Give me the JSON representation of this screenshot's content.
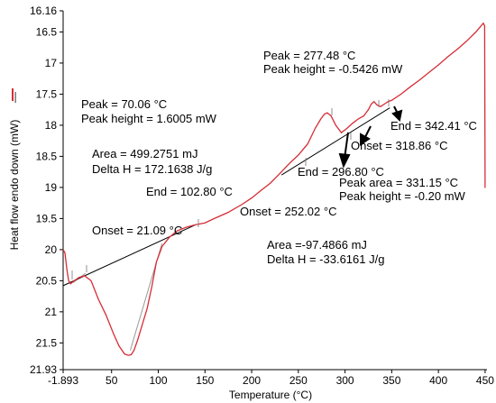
{
  "chart_data": {
    "type": "line",
    "xlabel": "Temperature (°C)",
    "ylabel": "Heat flow endo down (mW)",
    "xlim": [
      -1.893,
      452
    ],
    "ylim": [
      16.16,
      21.93
    ],
    "y_inverted": true,
    "x_ticks": [
      "-1.893",
      "50",
      "100",
      "150",
      "200",
      "250",
      "300",
      "350",
      "400",
      "450"
    ],
    "x_tick_values": [
      -1.893,
      50,
      100,
      150,
      200,
      250,
      300,
      350,
      400,
      450
    ],
    "y_ticks": [
      "16.16",
      "16.5",
      "17",
      "17.5",
      "18",
      "18.5",
      "19",
      "19.5",
      "20",
      "20.5",
      "21",
      "21.5",
      "21.93"
    ],
    "y_tick_values": [
      16.16,
      16.5,
      17,
      17.5,
      18,
      18.5,
      19,
      19.5,
      20,
      20.5,
      21,
      21.5,
      21.93
    ],
    "legend_label": "—",
    "colors": {
      "curve": "#d62d36",
      "baseline": "#000000",
      "tangent": "#999999"
    },
    "series": [
      {
        "x": [
          -1.893,
          0,
          2,
          4,
          6,
          10,
          15,
          21,
          28,
          36,
          44,
          52,
          58,
          64,
          68,
          71,
          74,
          78,
          83,
          88,
          93,
          98,
          104,
          112,
          120,
          130,
          140,
          150,
          160,
          175,
          190,
          200,
          210,
          220,
          230,
          240,
          250,
          260,
          268,
          274,
          278,
          281,
          285,
          290,
          296,
          302,
          308,
          314,
          320,
          325,
          328,
          331,
          334,
          338,
          342,
          346,
          350,
          360,
          370,
          380,
          390,
          400,
          410,
          420,
          430,
          440,
          448,
          449.5,
          450,
          450.5
        ],
        "y": [
          20.0,
          20.05,
          20.3,
          20.5,
          20.55,
          20.5,
          20.45,
          20.42,
          20.5,
          20.8,
          21.05,
          21.35,
          21.55,
          21.68,
          21.7,
          21.69,
          21.62,
          21.45,
          21.2,
          20.95,
          20.6,
          20.2,
          19.95,
          19.8,
          19.7,
          19.64,
          19.6,
          19.57,
          19.5,
          19.4,
          19.27,
          19.17,
          19.05,
          18.93,
          18.78,
          18.62,
          18.48,
          18.3,
          18.05,
          17.9,
          17.82,
          17.8,
          17.85,
          18.0,
          18.12,
          18.05,
          17.97,
          17.9,
          17.85,
          17.75,
          17.66,
          17.62,
          17.67,
          17.7,
          17.66,
          17.62,
          17.6,
          17.5,
          17.38,
          17.27,
          17.15,
          17.03,
          16.9,
          16.78,
          16.65,
          16.5,
          16.36,
          16.4,
          19.0,
          19.0
        ]
      }
    ],
    "baselines": [
      {
        "from": [
          -1.893,
          20.58
        ],
        "to": [
          140,
          19.6
        ]
      },
      {
        "from": [
          232,
          18.8
        ],
        "to": [
          348,
          17.72
        ]
      }
    ],
    "tangents": [
      {
        "from": [
          9,
          20.53
        ],
        "to": [
          22,
          20.38
        ]
      },
      {
        "from": [
          70,
          21.62
        ],
        "to": [
          104,
          19.9
        ]
      }
    ],
    "annotations": {
      "peak1_temp": "Peak = 70.06 °C",
      "peak1_height": "Peak height = 1.6005 mW",
      "area1": "Area = 499.2751 mJ",
      "deltah1": "Delta H = 172.1638 J/g",
      "end1": "End = 102.80 °C",
      "onset1": "Onset = 21.09 °C",
      "onset2": "Onset = 252.02 °C",
      "peak2_temp": "Peak = 277.48 °C",
      "peak2_height": "Peak height = -0.5426 mW",
      "end2": "End = 342.41 °C",
      "onset3": "Onset = 318.86 °C",
      "end3": "End = 296.80 °C",
      "peak3_area": "Peak area = 331.15 °C",
      "peak3_height": "Peak height = -0.20 mW",
      "area2": "Area =-97.4866 mJ",
      "deltah2": "Delta H = -33.6161 J/g"
    }
  }
}
